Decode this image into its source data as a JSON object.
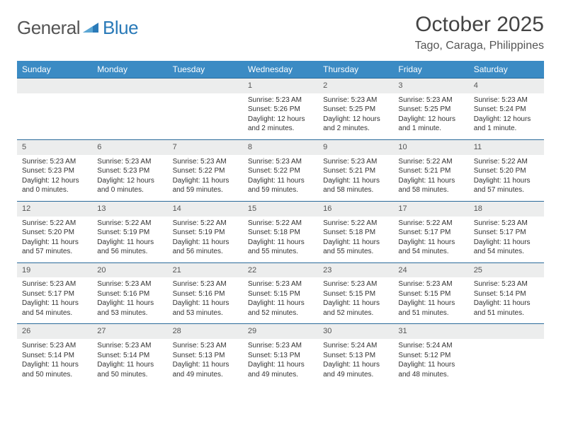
{
  "logo": {
    "text1": "General",
    "text2": "Blue"
  },
  "header": {
    "title": "October 2025",
    "location": "Tago, Caraga, Philippines"
  },
  "colors": {
    "header_bg": "#3b8bc4",
    "header_text": "#ffffff",
    "daynum_bg": "#eceded",
    "cell_border": "#2a6a9a",
    "title_color": "#444444",
    "body_text": "#333333",
    "logo_gray": "#555555",
    "logo_blue": "#2a7ab8"
  },
  "days_of_week": [
    "Sunday",
    "Monday",
    "Tuesday",
    "Wednesday",
    "Thursday",
    "Friday",
    "Saturday"
  ],
  "weeks": [
    [
      null,
      null,
      null,
      {
        "n": "1",
        "sr": "5:23 AM",
        "ss": "5:26 PM",
        "dl": "12 hours and 2 minutes."
      },
      {
        "n": "2",
        "sr": "5:23 AM",
        "ss": "5:25 PM",
        "dl": "12 hours and 2 minutes."
      },
      {
        "n": "3",
        "sr": "5:23 AM",
        "ss": "5:25 PM",
        "dl": "12 hours and 1 minute."
      },
      {
        "n": "4",
        "sr": "5:23 AM",
        "ss": "5:24 PM",
        "dl": "12 hours and 1 minute."
      }
    ],
    [
      {
        "n": "5",
        "sr": "5:23 AM",
        "ss": "5:23 PM",
        "dl": "12 hours and 0 minutes."
      },
      {
        "n": "6",
        "sr": "5:23 AM",
        "ss": "5:23 PM",
        "dl": "12 hours and 0 minutes."
      },
      {
        "n": "7",
        "sr": "5:23 AM",
        "ss": "5:22 PM",
        "dl": "11 hours and 59 minutes."
      },
      {
        "n": "8",
        "sr": "5:23 AM",
        "ss": "5:22 PM",
        "dl": "11 hours and 59 minutes."
      },
      {
        "n": "9",
        "sr": "5:23 AM",
        "ss": "5:21 PM",
        "dl": "11 hours and 58 minutes."
      },
      {
        "n": "10",
        "sr": "5:22 AM",
        "ss": "5:21 PM",
        "dl": "11 hours and 58 minutes."
      },
      {
        "n": "11",
        "sr": "5:22 AM",
        "ss": "5:20 PM",
        "dl": "11 hours and 57 minutes."
      }
    ],
    [
      {
        "n": "12",
        "sr": "5:22 AM",
        "ss": "5:20 PM",
        "dl": "11 hours and 57 minutes."
      },
      {
        "n": "13",
        "sr": "5:22 AM",
        "ss": "5:19 PM",
        "dl": "11 hours and 56 minutes."
      },
      {
        "n": "14",
        "sr": "5:22 AM",
        "ss": "5:19 PM",
        "dl": "11 hours and 56 minutes."
      },
      {
        "n": "15",
        "sr": "5:22 AM",
        "ss": "5:18 PM",
        "dl": "11 hours and 55 minutes."
      },
      {
        "n": "16",
        "sr": "5:22 AM",
        "ss": "5:18 PM",
        "dl": "11 hours and 55 minutes."
      },
      {
        "n": "17",
        "sr": "5:22 AM",
        "ss": "5:17 PM",
        "dl": "11 hours and 54 minutes."
      },
      {
        "n": "18",
        "sr": "5:23 AM",
        "ss": "5:17 PM",
        "dl": "11 hours and 54 minutes."
      }
    ],
    [
      {
        "n": "19",
        "sr": "5:23 AM",
        "ss": "5:17 PM",
        "dl": "11 hours and 54 minutes."
      },
      {
        "n": "20",
        "sr": "5:23 AM",
        "ss": "5:16 PM",
        "dl": "11 hours and 53 minutes."
      },
      {
        "n": "21",
        "sr": "5:23 AM",
        "ss": "5:16 PM",
        "dl": "11 hours and 53 minutes."
      },
      {
        "n": "22",
        "sr": "5:23 AM",
        "ss": "5:15 PM",
        "dl": "11 hours and 52 minutes."
      },
      {
        "n": "23",
        "sr": "5:23 AM",
        "ss": "5:15 PM",
        "dl": "11 hours and 52 minutes."
      },
      {
        "n": "24",
        "sr": "5:23 AM",
        "ss": "5:15 PM",
        "dl": "11 hours and 51 minutes."
      },
      {
        "n": "25",
        "sr": "5:23 AM",
        "ss": "5:14 PM",
        "dl": "11 hours and 51 minutes."
      }
    ],
    [
      {
        "n": "26",
        "sr": "5:23 AM",
        "ss": "5:14 PM",
        "dl": "11 hours and 50 minutes."
      },
      {
        "n": "27",
        "sr": "5:23 AM",
        "ss": "5:14 PM",
        "dl": "11 hours and 50 minutes."
      },
      {
        "n": "28",
        "sr": "5:23 AM",
        "ss": "5:13 PM",
        "dl": "11 hours and 49 minutes."
      },
      {
        "n": "29",
        "sr": "5:23 AM",
        "ss": "5:13 PM",
        "dl": "11 hours and 49 minutes."
      },
      {
        "n": "30",
        "sr": "5:24 AM",
        "ss": "5:13 PM",
        "dl": "11 hours and 49 minutes."
      },
      {
        "n": "31",
        "sr": "5:24 AM",
        "ss": "5:12 PM",
        "dl": "11 hours and 48 minutes."
      },
      null
    ]
  ],
  "labels": {
    "sunrise": "Sunrise: ",
    "sunset": "Sunset: ",
    "daylight": "Daylight: "
  }
}
